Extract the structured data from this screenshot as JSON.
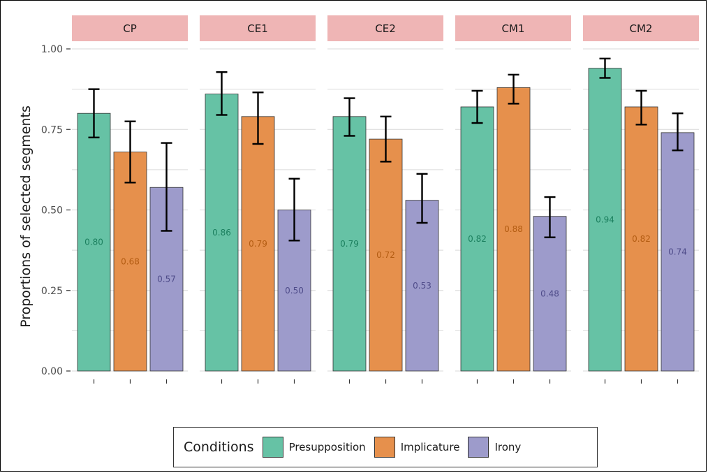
{
  "chart_data": {
    "type": "bar",
    "ylabel": "Proportions of selected segments",
    "ylim": [
      0,
      1
    ],
    "y_ticks": [
      "0.00",
      "0.25",
      "0.50",
      "0.75",
      "1.00"
    ],
    "y_tick_values": [
      0,
      0.25,
      0.5,
      0.75,
      1.0
    ],
    "facets": [
      "CP",
      "CE1",
      "CE2",
      "CM1",
      "CM2"
    ],
    "series": [
      {
        "name": "Presupposition",
        "color": "#66c2a5",
        "values": [
          0.8,
          0.86,
          0.79,
          0.82,
          0.94
        ],
        "labels": [
          "0.80",
          "0.86",
          "0.79",
          "0.82",
          "0.94"
        ],
        "error_low": [
          0.725,
          0.795,
          0.73,
          0.77,
          0.91
        ],
        "error_high": [
          0.875,
          0.928,
          0.847,
          0.87,
          0.97
        ],
        "label_color": "#1b7f5e"
      },
      {
        "name": "Implicature",
        "color": "#e6904c",
        "values": [
          0.68,
          0.79,
          0.72,
          0.88,
          0.82
        ],
        "labels": [
          "0.68",
          "0.79",
          "0.72",
          "0.88",
          "0.82"
        ],
        "error_low": [
          0.585,
          0.705,
          0.65,
          0.83,
          0.765
        ],
        "error_high": [
          0.775,
          0.865,
          0.79,
          0.92,
          0.87
        ],
        "label_color": "#b35c12"
      },
      {
        "name": "Irony",
        "color": "#9d9bcb",
        "values": [
          0.57,
          0.5,
          0.53,
          0.48,
          0.74
        ],
        "labels": [
          "0.57",
          "0.50",
          "0.53",
          "0.48",
          "0.74"
        ],
        "error_low": [
          0.435,
          0.405,
          0.46,
          0.415,
          0.685
        ],
        "error_high": [
          0.708,
          0.597,
          0.612,
          0.54,
          0.8
        ],
        "label_color": "#4f4c8a"
      }
    ],
    "legend": {
      "title": "Conditions",
      "position": "bottom"
    },
    "grid": true,
    "strip_color": "#efb5b5"
  }
}
